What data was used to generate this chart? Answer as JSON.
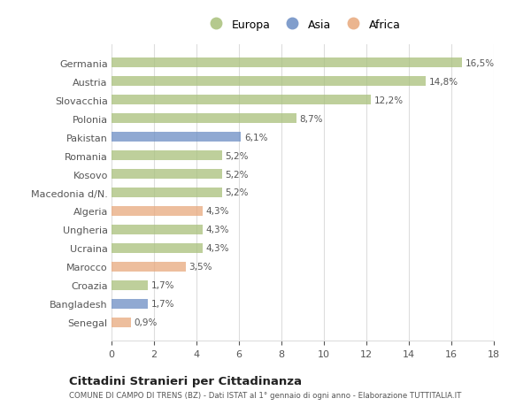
{
  "categories": [
    "Germania",
    "Austria",
    "Slovacchia",
    "Polonia",
    "Pakistan",
    "Romania",
    "Kosovo",
    "Macedonia d/N.",
    "Algeria",
    "Ungheria",
    "Ucraina",
    "Marocco",
    "Croazia",
    "Bangladesh",
    "Senegal"
  ],
  "values": [
    16.5,
    14.8,
    12.2,
    8.7,
    6.1,
    5.2,
    5.2,
    5.2,
    4.3,
    4.3,
    4.3,
    3.5,
    1.7,
    1.7,
    0.9
  ],
  "labels": [
    "16,5%",
    "14,8%",
    "12,2%",
    "8,7%",
    "6,1%",
    "5,2%",
    "5,2%",
    "5,2%",
    "4,3%",
    "4,3%",
    "4,3%",
    "3,5%",
    "1,7%",
    "1,7%",
    "0,9%"
  ],
  "continents": [
    "Europa",
    "Europa",
    "Europa",
    "Europa",
    "Asia",
    "Europa",
    "Europa",
    "Europa",
    "Africa",
    "Europa",
    "Europa",
    "Africa",
    "Europa",
    "Asia",
    "Africa"
  ],
  "colors": {
    "Europa": "#a8c07a",
    "Asia": "#6b8dc4",
    "Africa": "#e8a87c"
  },
  "legend_labels": [
    "Europa",
    "Asia",
    "Africa"
  ],
  "bg_color": "#ffffff",
  "plot_bg_color": "#ffffff",
  "title": "Cittadini Stranieri per Cittadinanza",
  "subtitle": "COMUNE DI CAMPO DI TRENS (BZ) - Dati ISTAT al 1° gennaio di ogni anno - Elaborazione TUTTITALIA.IT",
  "xlabel_ticks": [
    0,
    2,
    4,
    6,
    8,
    10,
    12,
    14,
    16,
    18
  ],
  "xlim": [
    0,
    18
  ],
  "bar_height": 0.55,
  "grid_color": "#dddddd",
  "text_color": "#555555"
}
